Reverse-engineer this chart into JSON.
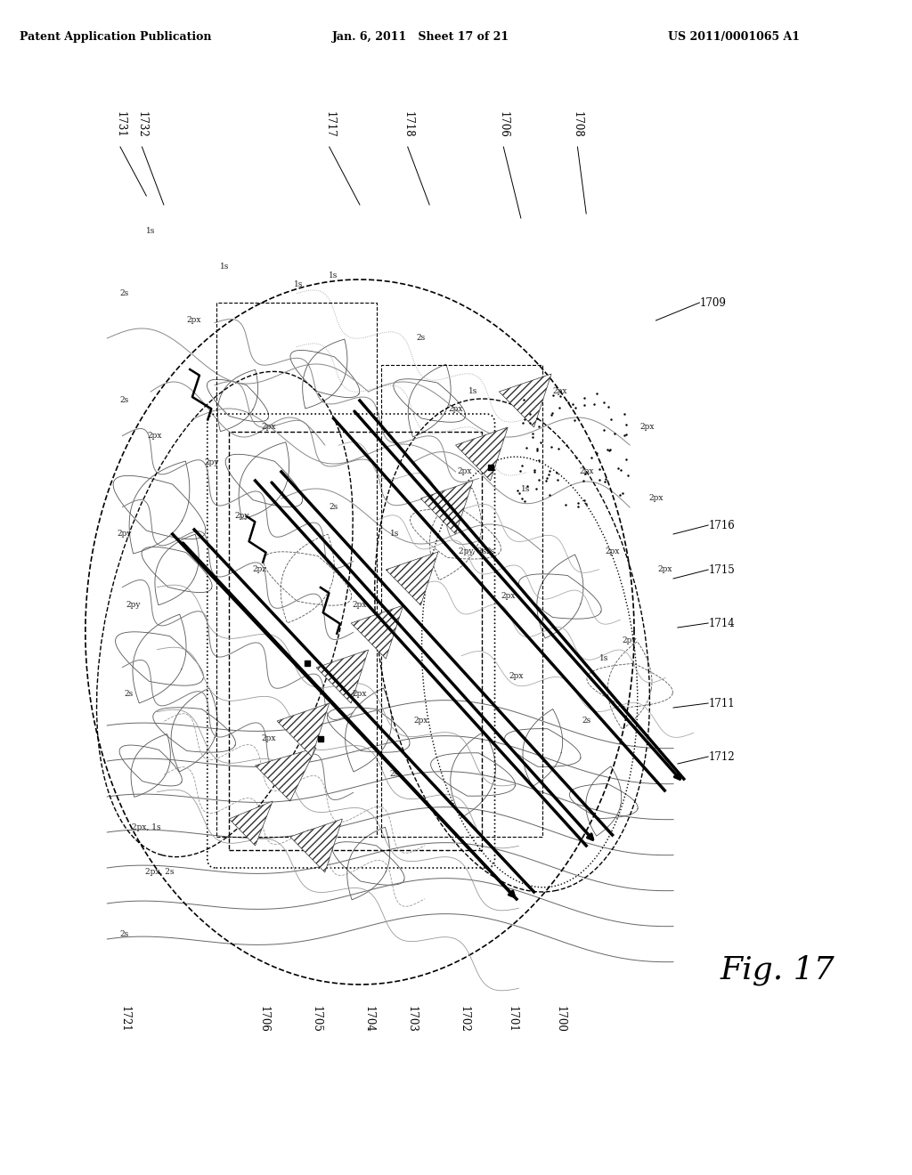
{
  "header_left": "Patent Application Publication",
  "header_mid": "Jan. 6, 2011   Sheet 17 of 21",
  "header_right": "US 2011/0001065 A1",
  "fig_label": "Fig. 17",
  "top_labels": [
    "1731",
    "1732",
    "1717",
    "1718",
    "1706",
    "1708"
  ],
  "bottom_labels": [
    "1721",
    "1706",
    "1705",
    "1704",
    "1703",
    "1702",
    "1701",
    "1700"
  ],
  "right_labels": [
    "1709",
    "1716",
    "1715",
    "1714",
    "1711",
    "1712"
  ],
  "bg_color": "#ffffff",
  "diagram_color": "#000000",
  "light_gray": "#aaaaaa",
  "mid_gray": "#888888"
}
